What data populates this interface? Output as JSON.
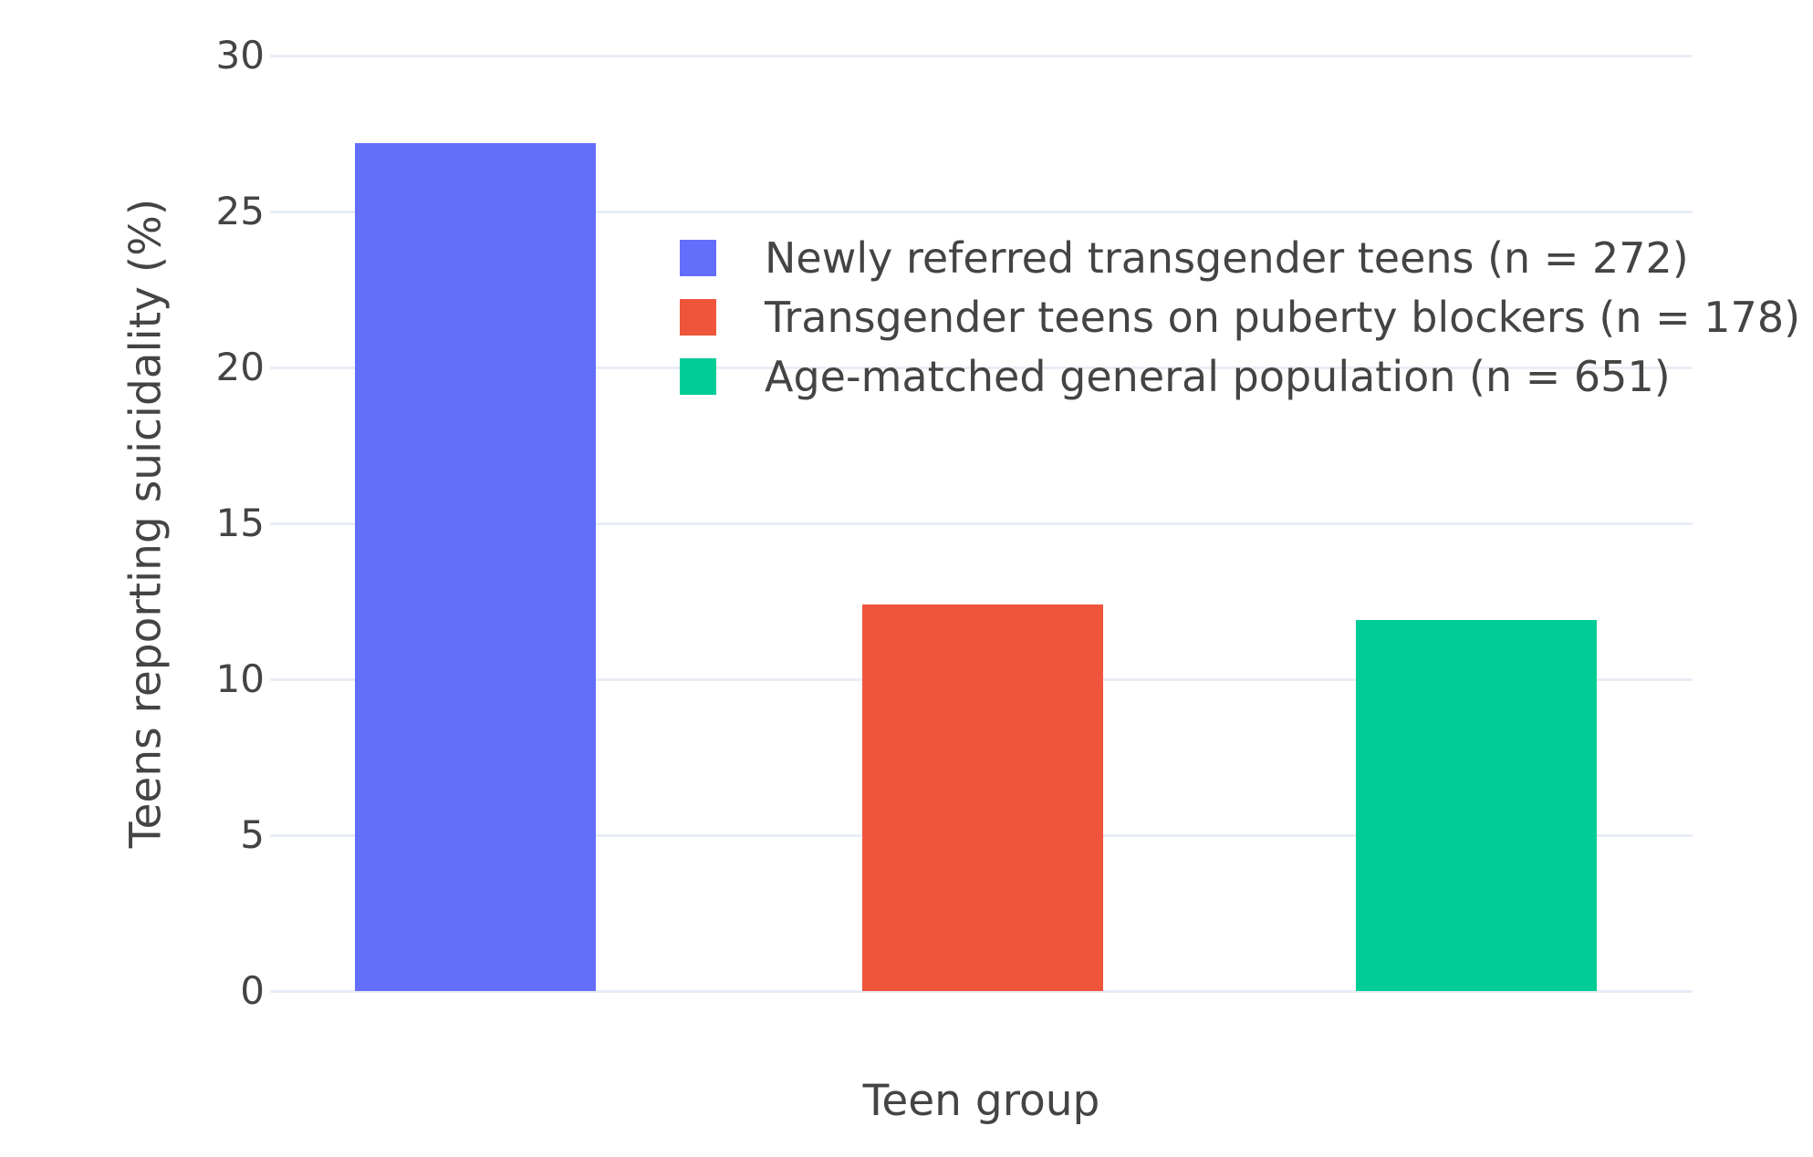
{
  "chart_data": {
    "type": "bar",
    "title": "",
    "xlabel": "Teen group",
    "ylabel": "Teens reporting suicidality (%)",
    "series": [
      {
        "name": "Newly referred transgender teens (n = 272)",
        "value": 27.2,
        "color": "#636EFA"
      },
      {
        "name": "Transgender teens on puberty blockers (n = 178)",
        "value": 12.4,
        "color": "#EF553B"
      },
      {
        "name": "Age-matched general population (n = 651)",
        "value": 11.9,
        "color": "#00CC96"
      }
    ],
    "ylim": [
      0,
      30
    ],
    "yticks": [
      0,
      5,
      10,
      15,
      20,
      25,
      30
    ],
    "grid": true,
    "legend_position": "inside top-left",
    "background_color": "#FFFFFF",
    "grid_color": "#E8EDF6",
    "text_color": "#444444"
  }
}
